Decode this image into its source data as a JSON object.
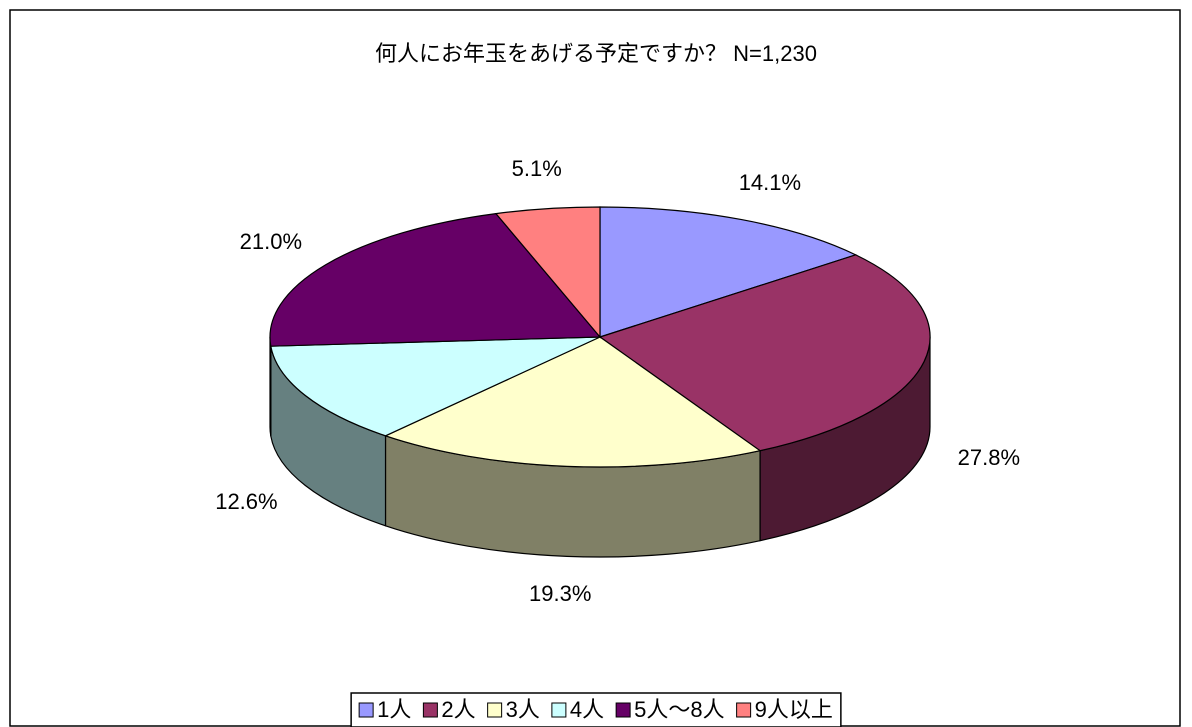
{
  "chart_data": {
    "type": "pie",
    "title": "何人にお年玉をあげる予定ですか？ N=1,230",
    "categories": [
      "1人",
      "2人",
      "3人",
      "4人",
      "5人～8人",
      "9人以上"
    ],
    "values": [
      14.1,
      27.8,
      19.3,
      12.6,
      21.0,
      5.1
    ],
    "value_labels": [
      "14.1%",
      "27.8%",
      "19.3%",
      "12.6%",
      "21.0%",
      "5.1%"
    ],
    "colors": [
      "#9999ff",
      "#993366",
      "#ffffcc",
      "#ccffff",
      "#660066",
      "#ff8080"
    ],
    "legend": "bottom"
  }
}
